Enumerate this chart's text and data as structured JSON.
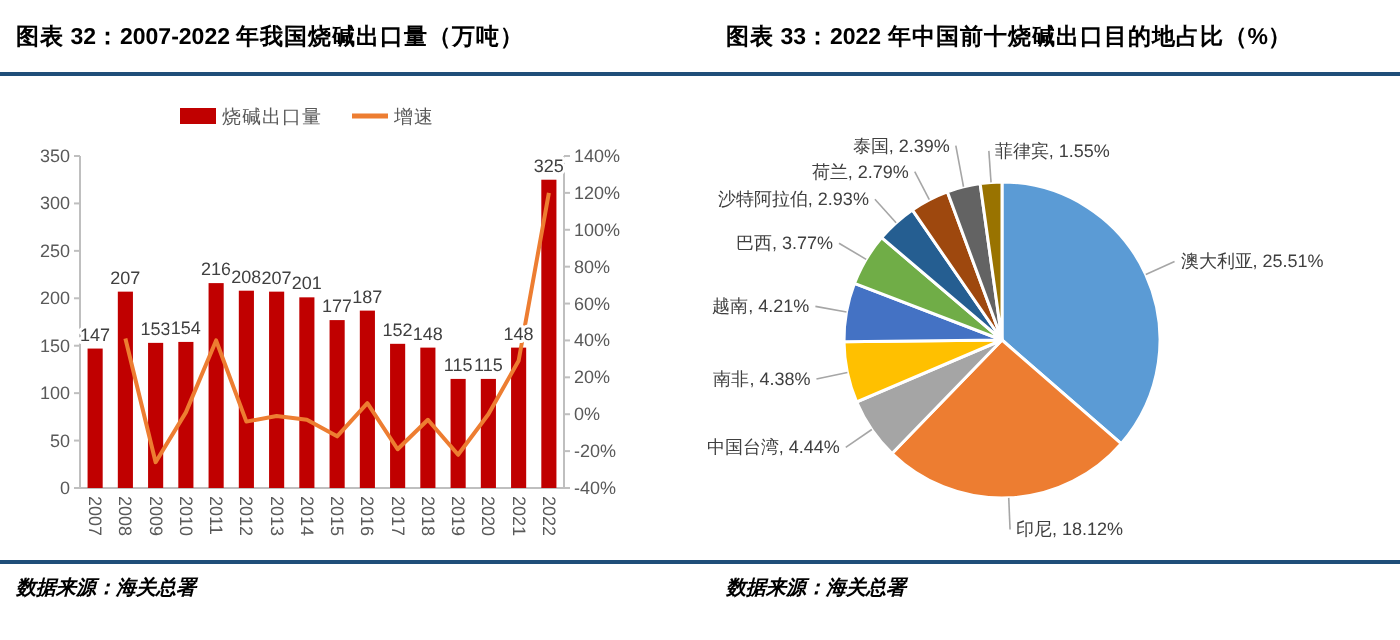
{
  "chart_data": [
    {
      "type": "bar",
      "title": "图表 32：2007-2022 年我国烧碱出口量（万吨）",
      "annotations": [
        "数据来源：海关总署"
      ],
      "categories": [
        "2007",
        "2008",
        "2009",
        "2010",
        "2011",
        "2012",
        "2013",
        "2014",
        "2015",
        "2016",
        "2017",
        "2018",
        "2019",
        "2020",
        "2021",
        "2022"
      ],
      "series": [
        {
          "name": "烧碱出口量",
          "type": "bar",
          "color": "#c00000",
          "values": [
            147,
            207,
            153,
            154,
            216,
            208,
            207,
            201,
            177,
            187,
            152,
            148,
            115,
            115,
            148,
            325
          ],
          "value_labels": [
            "147",
            "207",
            "153",
            "154",
            "216",
            "208",
            "207",
            "201",
            "177",
            "187",
            "152",
            "148",
            "115",
            "115",
            "148",
            "325"
          ]
        },
        {
          "name": "增速",
          "type": "line",
          "axis": "y2",
          "color": "#ed7d31",
          "values": [
            null,
            41,
            -26,
            1,
            40,
            -4,
            -1,
            -3,
            -12,
            6,
            -19,
            -3,
            -22,
            0,
            29,
            120
          ]
        }
      ],
      "ylim": [
        0,
        350
      ],
      "yticks": [
        0,
        50,
        100,
        150,
        200,
        250,
        300,
        350
      ],
      "y2lim": [
        -40,
        140
      ],
      "y2ticks": [
        {
          "value": -40,
          "label": "-40%"
        },
        {
          "value": -20,
          "label": "-20%"
        },
        {
          "value": 0,
          "label": "0%"
        },
        {
          "value": 20,
          "label": "20%"
        },
        {
          "value": 40,
          "label": "40%"
        },
        {
          "value": 60,
          "label": "60%"
        },
        {
          "value": 80,
          "label": "80%"
        },
        {
          "value": 100,
          "label": "100%"
        },
        {
          "value": 120,
          "label": "120%"
        },
        {
          "value": 140,
          "label": "140%"
        }
      ],
      "legend": "top",
      "grid": false
    },
    {
      "type": "pie",
      "title": "图表 33：2022 年中国前十烧碱出口目的地占比（%）",
      "annotations": [
        "数据来源：海关总署"
      ],
      "categories": [
        "澳大利亚",
        "印尼",
        "中国台湾",
        "南非",
        "越南",
        "巴西",
        "沙特阿拉伯",
        "荷兰",
        "泰国",
        "菲律宾"
      ],
      "values": [
        25.51,
        18.12,
        4.44,
        4.38,
        4.21,
        3.77,
        2.93,
        2.79,
        2.39,
        1.55
      ],
      "value_labels": [
        "25.51%",
        "18.12%",
        "4.44%",
        "4.38%",
        "4.21%",
        "3.77%",
        "2.93%",
        "2.79%",
        "2.39%",
        "1.55%"
      ],
      "colors": [
        "#5b9bd5",
        "#ed7d31",
        "#a5a5a5",
        "#ffc000",
        "#4472c4",
        "#70ad47",
        "#255e91",
        "#9e480e",
        "#636363",
        "#997300"
      ]
    }
  ]
}
